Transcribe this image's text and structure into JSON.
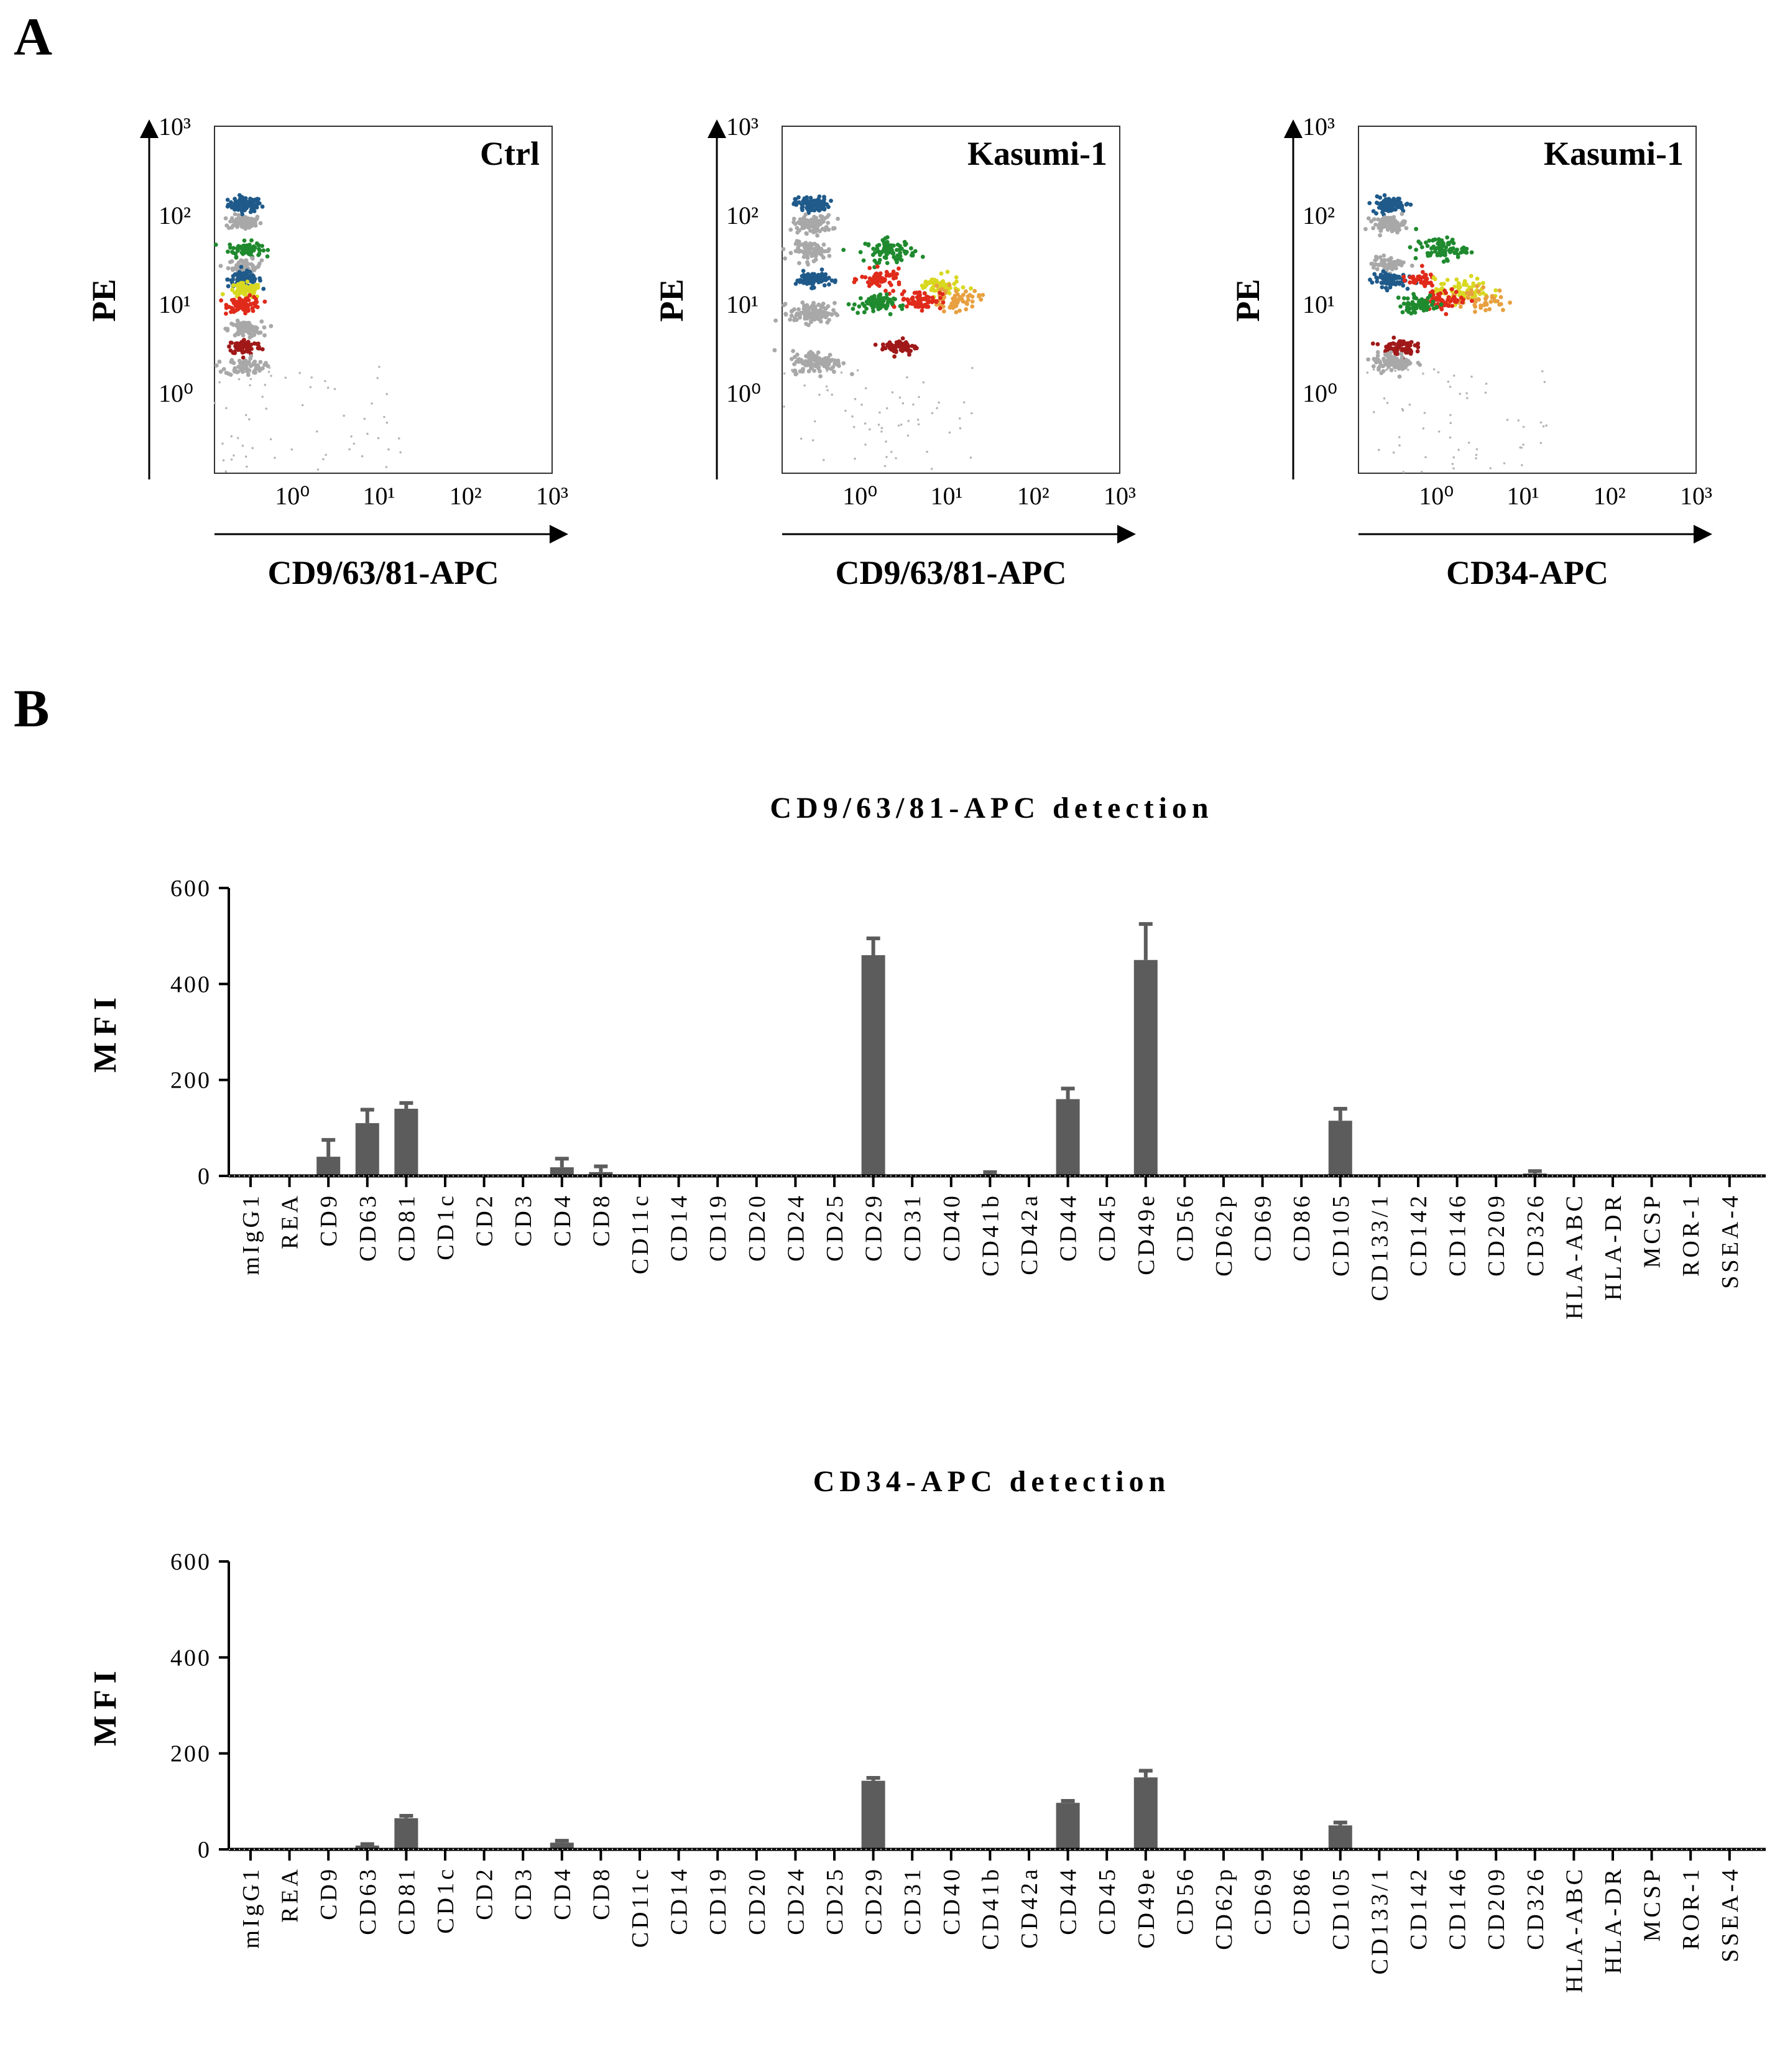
{
  "panels": {
    "a_label": "A",
    "b_label": "B"
  },
  "flow_plots": [
    {
      "title": "Ctrl",
      "xlabel": "CD9/63/81-APC",
      "ylabel": "PE",
      "xticks": [
        "10⁰",
        "10¹",
        "10²",
        "10³"
      ],
      "yticks": [
        "10⁰",
        "10¹",
        "10²",
        "10³"
      ],
      "populations": [
        {
          "color": "#1f5a8a",
          "x": -0.55,
          "y": 2.12,
          "spread": 0.12,
          "n": 90
        },
        {
          "color": "#a8a8a8",
          "x": -0.55,
          "y": 1.92,
          "spread": 0.12,
          "n": 70
        },
        {
          "color": "#1f8a2e",
          "x": -0.55,
          "y": 1.62,
          "spread": 0.12,
          "n": 70
        },
        {
          "color": "#a8a8a8",
          "x": -0.55,
          "y": 1.42,
          "spread": 0.12,
          "n": 60
        },
        {
          "color": "#1f5a8a",
          "x": -0.55,
          "y": 1.28,
          "spread": 0.12,
          "n": 80
        },
        {
          "color": "#d8d820",
          "x": -0.55,
          "y": 1.15,
          "spread": 0.12,
          "n": 70
        },
        {
          "color": "#e02a1a",
          "x": -0.55,
          "y": 1.0,
          "spread": 0.12,
          "n": 80
        },
        {
          "color": "#a8a8a8",
          "x": -0.55,
          "y": 0.72,
          "spread": 0.12,
          "n": 80
        },
        {
          "color": "#a01818",
          "x": -0.55,
          "y": 0.52,
          "spread": 0.12,
          "n": 80
        },
        {
          "color": "#a8a8a8",
          "x": -0.55,
          "y": 0.3,
          "spread": 0.14,
          "n": 80
        }
      ]
    },
    {
      "title": "Kasumi-1",
      "xlabel": "CD9/63/81-APC",
      "ylabel": "PE",
      "xticks": [
        "10⁰",
        "10¹",
        "10²",
        "10³"
      ],
      "yticks": [
        "10⁰",
        "10¹",
        "10²",
        "10³"
      ],
      "populations": [
        {
          "color": "#1f5a8a",
          "x": -0.55,
          "y": 2.12,
          "spread": 0.12,
          "n": 90
        },
        {
          "color": "#a8a8a8",
          "x": -0.55,
          "y": 1.9,
          "spread": 0.14,
          "n": 100
        },
        {
          "color": "#a8a8a8",
          "x": -0.55,
          "y": 1.6,
          "spread": 0.14,
          "n": 90
        },
        {
          "color": "#1f8a2e",
          "x": 0.35,
          "y": 1.6,
          "spread": 0.18,
          "n": 80
        },
        {
          "color": "#1f5a8a",
          "x": -0.55,
          "y": 1.28,
          "spread": 0.12,
          "n": 80
        },
        {
          "color": "#e02a1a",
          "x": 0.25,
          "y": 1.28,
          "spread": 0.15,
          "n": 60
        },
        {
          "color": "#d8d820",
          "x": 0.9,
          "y": 1.2,
          "spread": 0.16,
          "n": 60
        },
        {
          "color": "#e8a040",
          "x": 1.1,
          "y": 1.05,
          "spread": 0.18,
          "n": 60
        },
        {
          "color": "#e02a1a",
          "x": 0.7,
          "y": 1.05,
          "spread": 0.15,
          "n": 70
        },
        {
          "color": "#1f8a2e",
          "x": 0.15,
          "y": 1.0,
          "spread": 0.15,
          "n": 70
        },
        {
          "color": "#a8a8a8",
          "x": -0.55,
          "y": 0.9,
          "spread": 0.16,
          "n": 110
        },
        {
          "color": "#a01818",
          "x": 0.45,
          "y": 0.52,
          "spread": 0.13,
          "n": 60
        },
        {
          "color": "#a8a8a8",
          "x": -0.5,
          "y": 0.35,
          "spread": 0.18,
          "n": 120
        }
      ]
    },
    {
      "title": "Kasumi-1",
      "xlabel": "CD34-APC",
      "ylabel": "PE",
      "xticks": [
        "10⁰",
        "10¹",
        "10²",
        "10³"
      ],
      "yticks": [
        "10⁰",
        "10¹",
        "10²",
        "10³"
      ],
      "populations": [
        {
          "color": "#1f5a8a",
          "x": -0.55,
          "y": 2.12,
          "spread": 0.12,
          "n": 90
        },
        {
          "color": "#a8a8a8",
          "x": -0.55,
          "y": 1.9,
          "spread": 0.12,
          "n": 80
        },
        {
          "color": "#1f8a2e",
          "x": 0.05,
          "y": 1.62,
          "spread": 0.18,
          "n": 80
        },
        {
          "color": "#a8a8a8",
          "x": -0.55,
          "y": 1.45,
          "spread": 0.12,
          "n": 60
        },
        {
          "color": "#1f5a8a",
          "x": -0.55,
          "y": 1.28,
          "spread": 0.12,
          "n": 80
        },
        {
          "color": "#e02a1a",
          "x": -0.2,
          "y": 1.28,
          "spread": 0.12,
          "n": 40
        },
        {
          "color": "#d8d820",
          "x": 0.3,
          "y": 1.15,
          "spread": 0.2,
          "n": 70
        },
        {
          "color": "#e8a040",
          "x": 0.5,
          "y": 1.05,
          "spread": 0.2,
          "n": 50
        },
        {
          "color": "#e02a1a",
          "x": 0.1,
          "y": 1.05,
          "spread": 0.15,
          "n": 60
        },
        {
          "color": "#1f8a2e",
          "x": -0.2,
          "y": 1.0,
          "spread": 0.15,
          "n": 60
        },
        {
          "color": "#a01818",
          "x": -0.45,
          "y": 0.52,
          "spread": 0.12,
          "n": 70
        },
        {
          "color": "#a8a8a8",
          "x": -0.5,
          "y": 0.35,
          "spread": 0.15,
          "n": 90
        }
      ]
    }
  ],
  "chart_data": [
    {
      "type": "bar",
      "title": "CD9/63/81-APC detection",
      "ylabel": "MFI",
      "ylim": [
        0,
        600
      ],
      "yticks": [
        0,
        200,
        400,
        600
      ],
      "bar_color": "#5c5c5c",
      "categories": [
        "mIgG1",
        "REA",
        "CD9",
        "CD63",
        "CD81",
        "CD1c",
        "CD2",
        "CD3",
        "CD4",
        "CD8",
        "CD11c",
        "CD14",
        "CD19",
        "CD20",
        "CD24",
        "CD25",
        "CD29",
        "CD31",
        "CD40",
        "CD41b",
        "CD42a",
        "CD44",
        "CD45",
        "CD49e",
        "CD56",
        "CD62p",
        "CD69",
        "CD86",
        "CD105",
        "CD133/1",
        "CD142",
        "CD146",
        "CD209",
        "CD326",
        "HLA-ABC",
        "HLA-DR",
        "MCSP",
        "ROR-1",
        "SSEA-4"
      ],
      "values": [
        0,
        0,
        40,
        110,
        140,
        0,
        0,
        0,
        18,
        8,
        0,
        0,
        0,
        0,
        0,
        0,
        460,
        0,
        0,
        4,
        0,
        160,
        0,
        450,
        0,
        0,
        0,
        0,
        115,
        0,
        0,
        0,
        0,
        5,
        0,
        0,
        0,
        0,
        0
      ],
      "errors": [
        0,
        0,
        35,
        28,
        12,
        0,
        0,
        0,
        18,
        12,
        0,
        0,
        0,
        0,
        0,
        0,
        35,
        0,
        0,
        4,
        0,
        22,
        0,
        75,
        0,
        0,
        0,
        0,
        25,
        0,
        0,
        0,
        0,
        5,
        0,
        0,
        0,
        0,
        0
      ]
    },
    {
      "type": "bar",
      "title": "CD34-APC detection",
      "ylabel": "MFI",
      "ylim": [
        0,
        600
      ],
      "yticks": [
        0,
        200,
        400,
        600
      ],
      "bar_color": "#5c5c5c",
      "categories": [
        "mIgG1",
        "REA",
        "CD9",
        "CD63",
        "CD81",
        "CD1c",
        "CD2",
        "CD3",
        "CD4",
        "CD8",
        "CD11c",
        "CD14",
        "CD19",
        "CD20",
        "CD24",
        "CD25",
        "CD29",
        "CD31",
        "CD40",
        "CD41b",
        "CD42a",
        "CD44",
        "CD45",
        "CD49e",
        "CD56",
        "CD62p",
        "CD69",
        "CD86",
        "CD105",
        "CD133/1",
        "CD142",
        "CD146",
        "CD209",
        "CD326",
        "HLA-ABC",
        "HLA-DR",
        "MCSP",
        "ROR-1",
        "SSEA-4"
      ],
      "values": [
        0,
        0,
        0,
        8,
        65,
        0,
        0,
        0,
        14,
        0,
        0,
        0,
        0,
        0,
        0,
        0,
        143,
        0,
        0,
        0,
        0,
        97,
        0,
        150,
        0,
        0,
        0,
        0,
        50,
        0,
        0,
        0,
        0,
        0,
        0,
        0,
        0,
        0,
        0
      ],
      "errors": [
        0,
        0,
        0,
        3,
        5,
        0,
        0,
        0,
        4,
        0,
        0,
        0,
        0,
        0,
        0,
        0,
        6,
        0,
        0,
        0,
        0,
        4,
        0,
        14,
        0,
        0,
        0,
        0,
        6,
        0,
        0,
        0,
        0,
        0,
        0,
        0,
        0,
        0,
        0
      ]
    }
  ]
}
